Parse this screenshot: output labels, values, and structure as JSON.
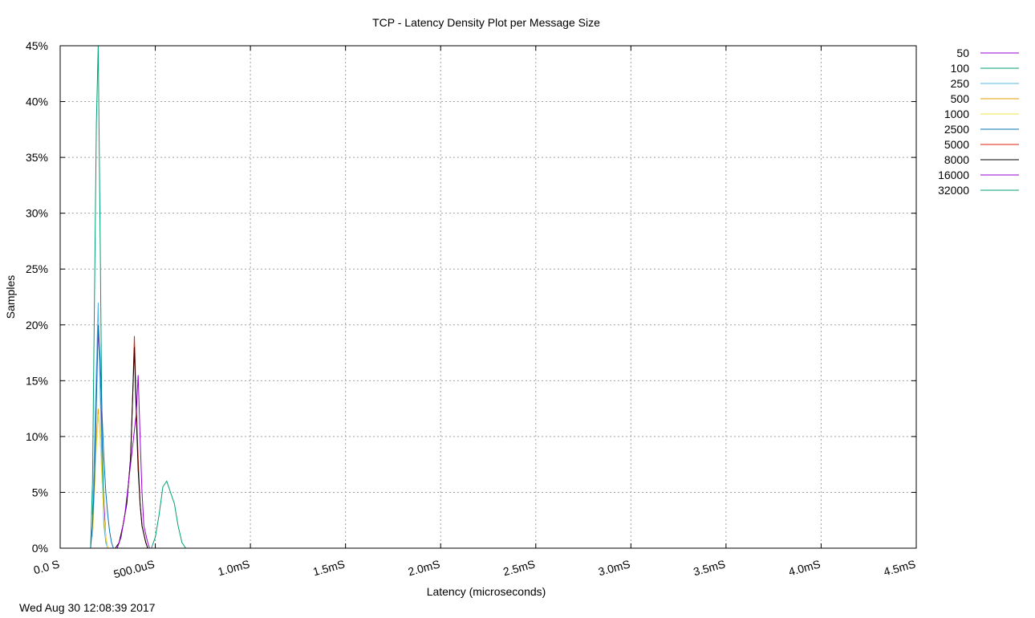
{
  "chart_data": {
    "type": "line",
    "title": "TCP - Latency Density Plot per Message Size",
    "xlabel": "Latency (microseconds)",
    "ylabel": "Samples",
    "xlim": [
      0,
      4500
    ],
    "ylim": [
      0,
      45
    ],
    "grid": true,
    "legend_position": "outside-right",
    "x_ticks": [
      {
        "value": 0,
        "label": "0.0 S"
      },
      {
        "value": 500,
        "label": "500.0uS"
      },
      {
        "value": 1000,
        "label": "1.0mS"
      },
      {
        "value": 1500,
        "label": "1.5mS"
      },
      {
        "value": 2000,
        "label": "2.0mS"
      },
      {
        "value": 2500,
        "label": "2.5mS"
      },
      {
        "value": 3000,
        "label": "3.0mS"
      },
      {
        "value": 3500,
        "label": "3.5mS"
      },
      {
        "value": 4000,
        "label": "4.0mS"
      },
      {
        "value": 4500,
        "label": "4.5mS"
      }
    ],
    "y_ticks": [
      {
        "value": 0,
        "label": "0%"
      },
      {
        "value": 5,
        "label": "5%"
      },
      {
        "value": 10,
        "label": "10%"
      },
      {
        "value": 15,
        "label": "15%"
      },
      {
        "value": 20,
        "label": "20%"
      },
      {
        "value": 25,
        "label": "25%"
      },
      {
        "value": 30,
        "label": "30%"
      },
      {
        "value": 35,
        "label": "35%"
      },
      {
        "value": 40,
        "label": "40%"
      },
      {
        "value": 45,
        "label": "45%"
      }
    ],
    "series": [
      {
        "name": "50",
        "color": "#9400d3",
        "points": [
          [
            170,
            3
          ],
          [
            180,
            8
          ],
          [
            190,
            14
          ],
          [
            200,
            20
          ],
          [
            210,
            15
          ],
          [
            220,
            9
          ],
          [
            230,
            4
          ],
          [
            240,
            1
          ],
          [
            250,
            0
          ]
        ]
      },
      {
        "name": "100",
        "color": "#009e73",
        "points": [
          [
            160,
            0
          ],
          [
            170,
            6
          ],
          [
            180,
            22
          ],
          [
            190,
            38
          ],
          [
            200,
            45
          ],
          [
            210,
            28
          ],
          [
            220,
            10
          ],
          [
            230,
            3
          ],
          [
            240,
            0.5
          ],
          [
            250,
            0
          ]
        ]
      },
      {
        "name": "250",
        "color": "#56b4e9",
        "points": [
          [
            170,
            2
          ],
          [
            180,
            9
          ],
          [
            190,
            16
          ],
          [
            200,
            22
          ],
          [
            210,
            14
          ],
          [
            220,
            7
          ],
          [
            230,
            2
          ],
          [
            240,
            0.5
          ],
          [
            250,
            0
          ]
        ]
      },
      {
        "name": "500",
        "color": "#e69f00",
        "points": [
          [
            170,
            1
          ],
          [
            180,
            5
          ],
          [
            190,
            10
          ],
          [
            200,
            12.5
          ],
          [
            210,
            10
          ],
          [
            220,
            6
          ],
          [
            230,
            3
          ],
          [
            240,
            1
          ],
          [
            250,
            0
          ]
        ]
      },
      {
        "name": "1000",
        "color": "#f0e442",
        "points": [
          [
            170,
            1
          ],
          [
            180,
            5
          ],
          [
            190,
            9
          ],
          [
            200,
            12
          ],
          [
            210,
            10
          ],
          [
            220,
            6
          ],
          [
            230,
            3
          ],
          [
            240,
            1
          ],
          [
            250,
            0
          ]
        ]
      },
      {
        "name": "2500",
        "color": "#0072b2",
        "points": [
          [
            160,
            0
          ],
          [
            170,
            2
          ],
          [
            180,
            6
          ],
          [
            190,
            13
          ],
          [
            200,
            20
          ],
          [
            210,
            17
          ],
          [
            220,
            12
          ],
          [
            230,
            8
          ],
          [
            240,
            5
          ],
          [
            250,
            3
          ],
          [
            260,
            1.5
          ],
          [
            270,
            0.5
          ],
          [
            280,
            0
          ]
        ]
      },
      {
        "name": "5000",
        "color": "#e51e10",
        "points": [
          [
            300,
            0
          ],
          [
            310,
            0.5
          ],
          [
            330,
            2
          ],
          [
            350,
            4
          ],
          [
            370,
            8
          ],
          [
            380,
            13
          ],
          [
            390,
            19
          ],
          [
            400,
            13
          ],
          [
            410,
            8
          ],
          [
            420,
            4
          ],
          [
            430,
            2
          ],
          [
            450,
            0.5
          ],
          [
            460,
            0
          ]
        ]
      },
      {
        "name": "8000",
        "color": "#000000",
        "points": [
          [
            290,
            0
          ],
          [
            310,
            0.5
          ],
          [
            330,
            2
          ],
          [
            350,
            4
          ],
          [
            370,
            8
          ],
          [
            380,
            13
          ],
          [
            390,
            18
          ],
          [
            400,
            12
          ],
          [
            410,
            7
          ],
          [
            420,
            4
          ],
          [
            430,
            2
          ],
          [
            450,
            0.5
          ],
          [
            460,
            0
          ]
        ]
      },
      {
        "name": "16000",
        "color": "#9400d3",
        "points": [
          [
            300,
            0
          ],
          [
            320,
            1
          ],
          [
            340,
            3
          ],
          [
            360,
            6
          ],
          [
            380,
            9
          ],
          [
            400,
            12
          ],
          [
            410,
            15.5
          ],
          [
            420,
            10
          ],
          [
            430,
            5
          ],
          [
            440,
            2
          ],
          [
            460,
            0.5
          ],
          [
            470,
            0
          ]
        ]
      },
      {
        "name": "32000",
        "color": "#009e73",
        "points": [
          [
            480,
            0
          ],
          [
            500,
            1
          ],
          [
            520,
            3
          ],
          [
            540,
            5.5
          ],
          [
            560,
            6
          ],
          [
            580,
            5
          ],
          [
            600,
            4
          ],
          [
            620,
            2
          ],
          [
            640,
            0.5
          ],
          [
            660,
            0
          ]
        ]
      }
    ]
  },
  "timestamp": "Wed Aug 30 12:08:39 2017"
}
